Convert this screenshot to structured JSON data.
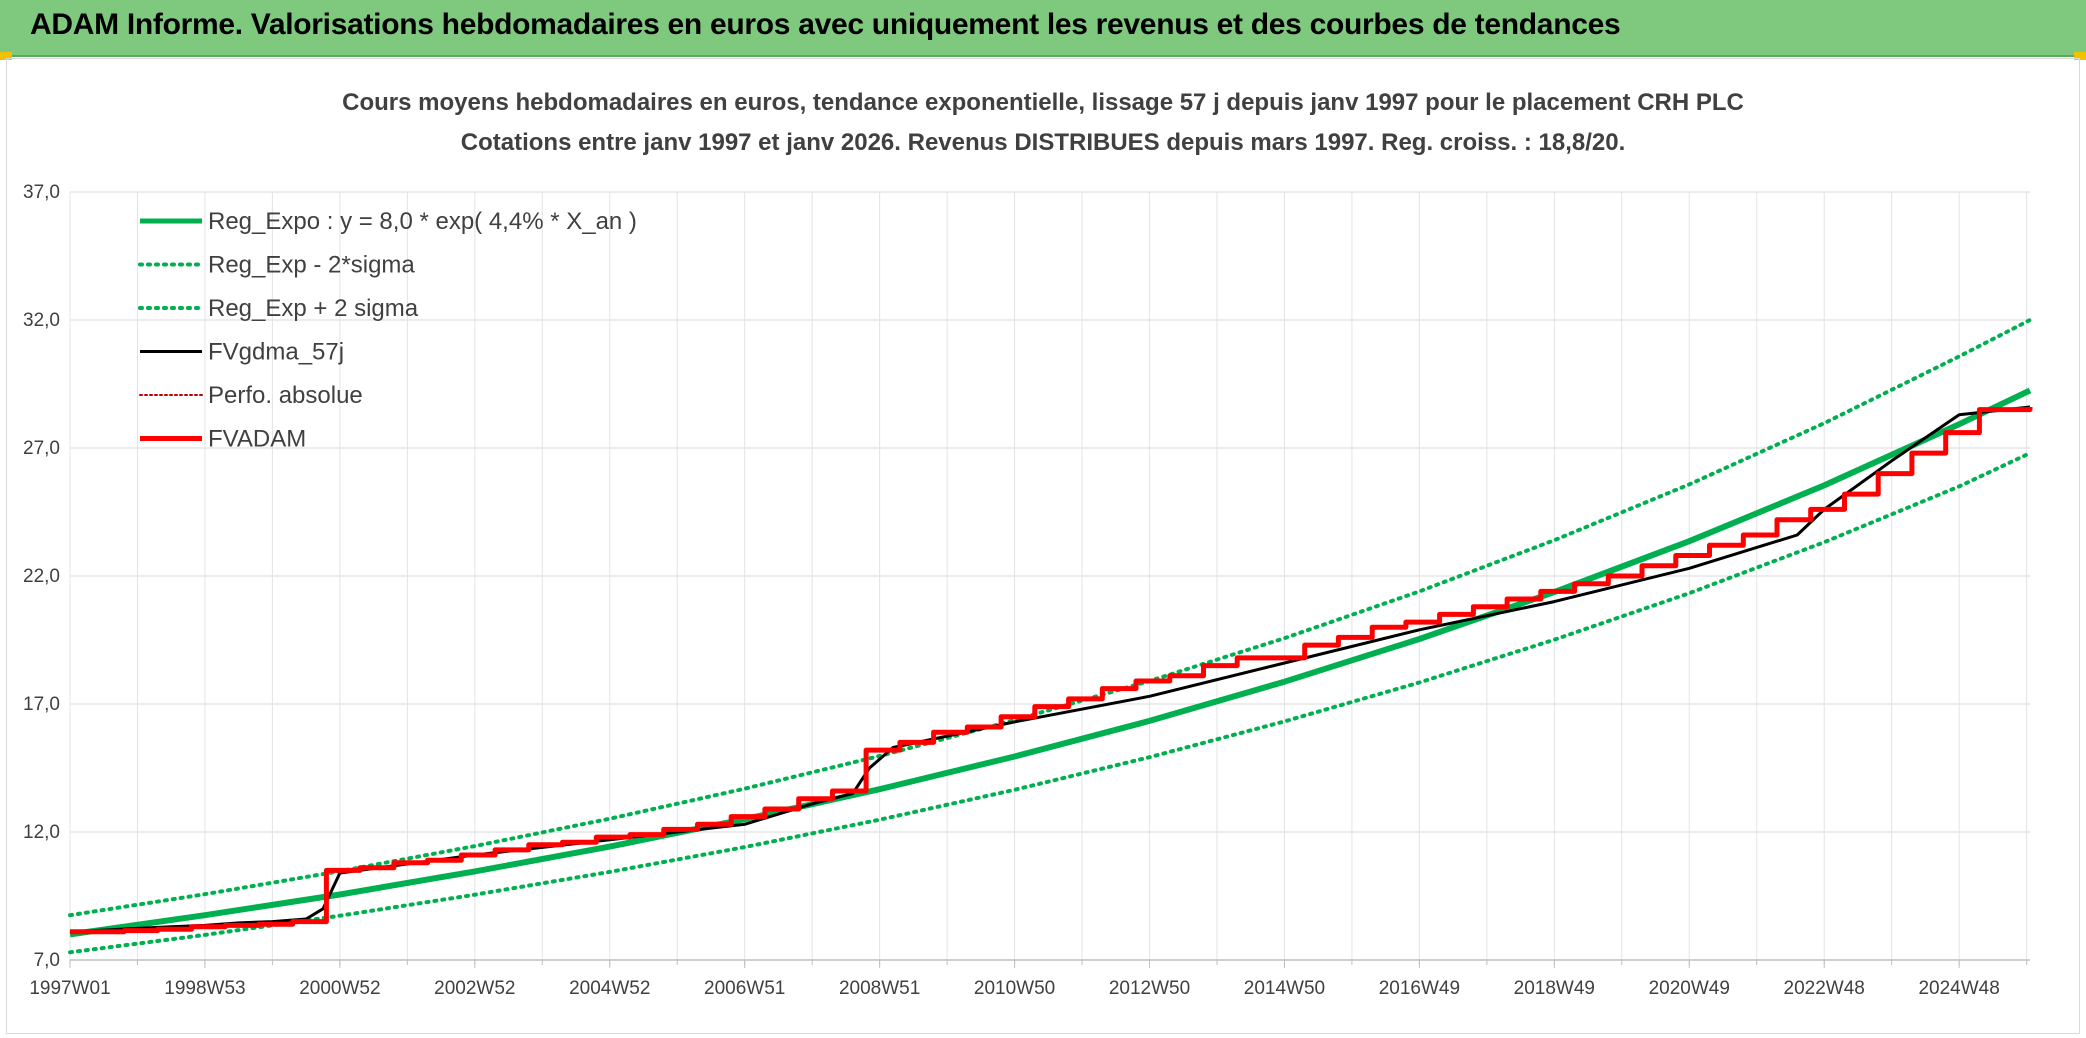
{
  "header": {
    "title": "ADAM Informe. Valorisations hebdomadaires en euros avec uniquement les revenus et des courbes de tendances"
  },
  "chart_data": {
    "type": "line",
    "title": "Cours moyens hebdomadaires en euros, tendance exponentielle, lissage 57 j depuis janv 1997 pour le placement CRH PLC",
    "subtitle": "Cotations entre janv 1997 et janv 2026. Revenus DISTRIBUES depuis mars 1997. Reg. croiss. : 18,8/20.",
    "xlabel": "",
    "ylabel": "",
    "xlim": [
      1997.0,
      2026.05
    ],
    "ylim": [
      7.0,
      37.0
    ],
    "grid": true,
    "legend_position": "top-left",
    "x_tick_values": [
      1997.0,
      1999.0,
      2001.0,
      2003.0,
      2005.0,
      2007.0,
      2009.0,
      2011.0,
      2013.0,
      2015.0,
      2017.0,
      2019.0,
      2021.0,
      2023.0,
      2025.0
    ],
    "x_tick_labels": [
      "1997W01",
      "1998W53",
      "2000W52",
      "2002W52",
      "2004W52",
      "2006W51",
      "2008W51",
      "2010W50",
      "2012W50",
      "2014W50",
      "2016W49",
      "2018W49",
      "2020W49",
      "2022W48",
      "2024W48"
    ],
    "y_ticks": [
      7.0,
      12.0,
      17.0,
      22.0,
      27.0,
      32.0,
      37.0
    ],
    "y_tick_labels": [
      "7,0",
      "12,0",
      "17,0",
      "22,0",
      "27,0",
      "32,0",
      "37,0"
    ],
    "colors": {
      "reg_expo": "#00b050",
      "sigma": "#00b050",
      "fvgdma": "#000000",
      "perfo": "#c00000",
      "fvadam": "#ff0000"
    },
    "series": [
      {
        "name": "Reg_Expo : y = 8,0 * exp( 4,4% *  X_an )",
        "key": "reg_expo",
        "style": "solid-thick",
        "x": [
          1997.0,
          1999.0,
          2001.0,
          2003.0,
          2005.0,
          2007.0,
          2009.0,
          2011.0,
          2013.0,
          2015.0,
          2017.0,
          2019.0,
          2021.0,
          2023.0,
          2025.0,
          2026.05
        ],
        "values": [
          8.0,
          8.75,
          9.56,
          10.46,
          11.43,
          12.5,
          13.67,
          14.95,
          16.34,
          17.87,
          19.54,
          21.37,
          23.36,
          25.54,
          27.93,
          29.25
        ]
      },
      {
        "name": "Reg_Exp - 2*sigma",
        "key": "minus2sigma",
        "style": "dotted",
        "x": [
          1997.0,
          1999.0,
          2001.0,
          2003.0,
          2005.0,
          2007.0,
          2009.0,
          2011.0,
          2013.0,
          2015.0,
          2017.0,
          2019.0,
          2021.0,
          2023.0,
          2025.0,
          2026.05
        ],
        "values": [
          7.3,
          7.98,
          8.73,
          9.55,
          10.44,
          11.41,
          12.48,
          13.65,
          14.92,
          16.32,
          17.84,
          19.51,
          21.33,
          23.32,
          25.5,
          26.8
        ]
      },
      {
        "name": "Reg_Exp + 2 sigma",
        "key": "plus2sigma",
        "style": "dotted",
        "x": [
          1997.0,
          1999.0,
          2001.0,
          2003.0,
          2005.0,
          2007.0,
          2009.0,
          2011.0,
          2013.0,
          2015.0,
          2017.0,
          2019.0,
          2021.0,
          2023.0,
          2025.0,
          2026.05
        ],
        "values": [
          8.75,
          9.57,
          10.47,
          11.45,
          12.52,
          13.69,
          14.97,
          16.37,
          17.9,
          19.57,
          21.4,
          23.4,
          25.58,
          27.97,
          30.58,
          32.0
        ]
      },
      {
        "name": "FVgdma_57j",
        "key": "fvgdma",
        "style": "solid-thin",
        "x": [
          1997.0,
          1998.5,
          1999.0,
          1999.5,
          2000.0,
          2000.5,
          2000.75,
          2001.0,
          2003.0,
          2005.0,
          2007.0,
          2008.0,
          2008.6,
          2008.85,
          2009.2,
          2011.0,
          2013.0,
          2015.0,
          2017.0,
          2019.0,
          2021.0,
          2022.6,
          2023.0,
          2024.0,
          2025.0,
          2026.05
        ],
        "values": [
          8.1,
          8.3,
          8.35,
          8.45,
          8.5,
          8.6,
          9.0,
          10.4,
          11.1,
          11.7,
          12.3,
          13.1,
          13.5,
          14.5,
          15.3,
          16.3,
          17.3,
          18.6,
          19.9,
          21.0,
          22.3,
          23.6,
          24.6,
          26.5,
          28.3,
          28.6
        ]
      },
      {
        "name": "Perfo. absolue",
        "key": "perfo",
        "style": "dotted-red",
        "x": [
          1997.0,
          1999.0,
          2001.0,
          2003.0,
          2005.0,
          2007.0,
          2009.0,
          2011.0,
          2013.0,
          2015.0,
          2017.0,
          2019.0,
          2021.0,
          2023.0,
          2025.0,
          2026.05
        ],
        "values": [
          8.1,
          8.35,
          10.5,
          11.1,
          11.7,
          12.3,
          15.2,
          16.3,
          17.3,
          18.6,
          19.9,
          21.0,
          22.3,
          24.6,
          28.3,
          28.6
        ]
      },
      {
        "name": "FVADAM",
        "key": "fvadam",
        "style": "step-thick",
        "x": [
          1997.0,
          1997.8,
          1998.3,
          1998.8,
          1999.3,
          1999.8,
          2000.3,
          2000.8,
          2001.3,
          2001.8,
          2002.3,
          2002.8,
          2003.3,
          2003.8,
          2004.3,
          2004.8,
          2005.3,
          2005.8,
          2006.3,
          2006.8,
          2007.3,
          2007.8,
          2008.3,
          2008.8,
          2009.3,
          2009.8,
          2010.3,
          2010.8,
          2011.3,
          2011.8,
          2012.3,
          2012.8,
          2013.3,
          2013.8,
          2014.3,
          2014.8,
          2015.3,
          2015.8,
          2016.3,
          2016.8,
          2017.3,
          2017.8,
          2018.3,
          2018.8,
          2019.3,
          2019.8,
          2020.3,
          2020.8,
          2021.3,
          2021.8,
          2022.3,
          2022.8,
          2023.3,
          2023.8,
          2024.3,
          2024.8,
          2025.3,
          2026.05
        ],
        "values": [
          8.1,
          8.15,
          8.2,
          8.3,
          8.35,
          8.4,
          8.5,
          10.5,
          10.6,
          10.8,
          10.9,
          11.1,
          11.3,
          11.5,
          11.6,
          11.8,
          11.9,
          12.1,
          12.3,
          12.6,
          12.9,
          13.3,
          13.6,
          15.2,
          15.5,
          15.9,
          16.1,
          16.5,
          16.9,
          17.2,
          17.6,
          17.9,
          18.1,
          18.5,
          18.8,
          18.8,
          19.3,
          19.6,
          20.0,
          20.2,
          20.5,
          20.8,
          21.1,
          21.4,
          21.7,
          22.0,
          22.4,
          22.8,
          23.2,
          23.6,
          24.2,
          24.6,
          25.2,
          26.0,
          26.8,
          27.6,
          28.5,
          28.6
        ]
      }
    ]
  }
}
